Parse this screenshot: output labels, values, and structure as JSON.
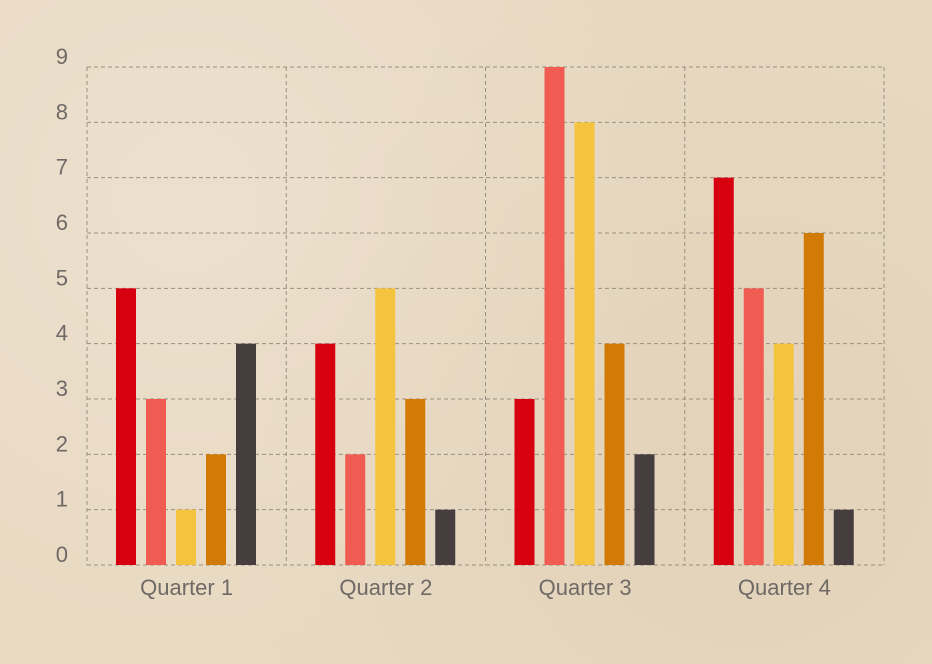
{
  "chart_data": {
    "type": "bar",
    "categories": [
      "Quarter 1",
      "Quarter 2",
      "Quarter 3",
      "Quarter 4"
    ],
    "series": [
      {
        "values": [
          5,
          4,
          3,
          7
        ],
        "color": "#d7000f"
      },
      {
        "values": [
          3,
          2,
          9,
          5
        ],
        "color": "#f05b52"
      },
      {
        "values": [
          1,
          5,
          8,
          4
        ],
        "color": "#f4c43f"
      },
      {
        "values": [
          2,
          3,
          4,
          6
        ],
        "color": "#d17b06"
      },
      {
        "values": [
          4,
          1,
          2,
          1
        ],
        "color": "#463d3f"
      }
    ],
    "y_ticks": [
      "0",
      "1",
      "2",
      "3",
      "4",
      "5",
      "6",
      "7",
      "8",
      "9"
    ],
    "ylim": [
      0,
      9
    ],
    "grid": true,
    "legend": "none"
  },
  "colors": {
    "background": "#e8d9c2",
    "grid": "#9a8f82",
    "text": "#6f6a66"
  }
}
